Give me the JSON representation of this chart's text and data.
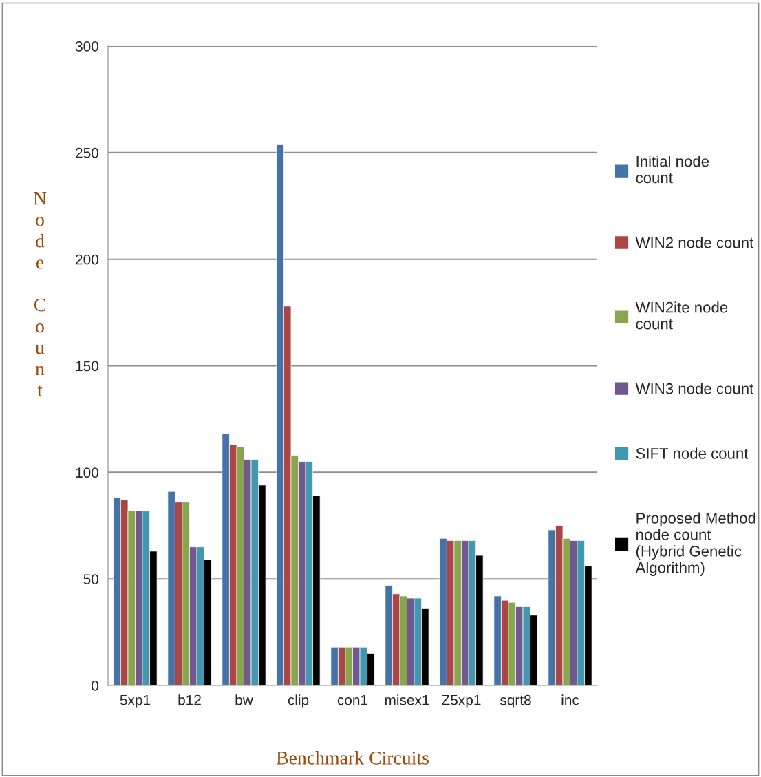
{
  "chart_data": {
    "type": "bar",
    "xlabel": "Benchmark Circuits",
    "ylabel": "Node Count",
    "categories": [
      "5xp1",
      "b12",
      "bw",
      "clip",
      "con1",
      "misex1",
      "Z5xp1",
      "sqrt8",
      "inc"
    ],
    "series": [
      {
        "name": "Initial node count",
        "color": "#4572a7",
        "values": [
          88,
          91,
          118,
          254,
          18,
          47,
          69,
          42,
          73
        ]
      },
      {
        "name": "WIN2 node count",
        "color": "#aa4643",
        "values": [
          87,
          86,
          113,
          178,
          18,
          43,
          68,
          40,
          75
        ]
      },
      {
        "name": "WIN2ite node count",
        "color": "#89a54e",
        "values": [
          82,
          86,
          112,
          108,
          18,
          42,
          68,
          39,
          69
        ]
      },
      {
        "name": "WIN3 node count",
        "color": "#71588f",
        "values": [
          82,
          65,
          106,
          105,
          18,
          41,
          68,
          37,
          68
        ]
      },
      {
        "name": "SIFT node count",
        "color": "#4198af",
        "values": [
          82,
          65,
          106,
          105,
          18,
          41,
          68,
          37,
          68
        ]
      },
      {
        "name": "Proposed Method node count (Hybrid Genetic Algorithm)",
        "color": "#000000",
        "values": [
          63,
          59,
          94,
          89,
          15,
          36,
          61,
          33,
          56
        ]
      }
    ],
    "ylim": [
      0,
      300
    ],
    "yticks": [
      0,
      50,
      100,
      150,
      200,
      250,
      300
    ],
    "grid": "y",
    "legend": "right"
  }
}
